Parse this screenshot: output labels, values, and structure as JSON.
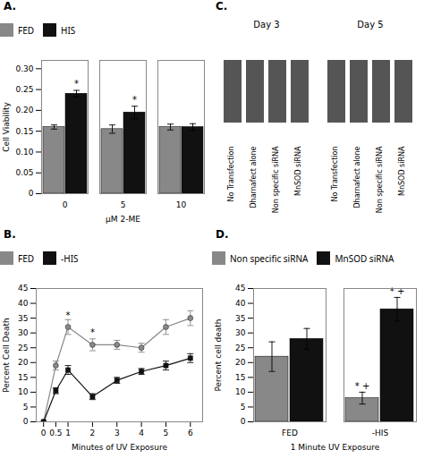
{
  "chart_data": [
    {
      "type": "bar",
      "title": "A.",
      "xlabel": "μM 2-ME",
      "ylabel": "Cell Viability",
      "categories": [
        0,
        5,
        10
      ],
      "series": [
        {
          "name": "FED",
          "color": "#888888",
          "values": [
            0.16,
            0.155,
            0.16
          ],
          "errors": [
            0.005,
            0.01,
            0.007
          ]
        },
        {
          "name": "HIS",
          "color": "#111111",
          "values": [
            0.24,
            0.195,
            0.16
          ],
          "errors": [
            0.008,
            0.015,
            0.008
          ]
        }
      ],
      "ylim": [
        0,
        0.32
      ],
      "yticks": [
        0,
        0.05,
        {
          "value": 0.1,
          "label": "0.10"
        },
        0.15,
        {
          "value": 0.2,
          "label": "0.20"
        },
        0.25,
        {
          "value": 0.3,
          "label": "0.30"
        }
      ],
      "legend": "top",
      "annotations": [
        {
          "text": "*",
          "category": 0,
          "series": "HIS",
          "y": 0.257
        },
        {
          "text": "*",
          "category": 5,
          "series": "HIS",
          "y": 0.219
        }
      ]
    },
    {
      "type": "blot",
      "title": "C.",
      "series": [
        {
          "name": "Day 3",
          "color": "#555555",
          "categories": [
            "No Transfection",
            "Dharnafect alone",
            "Non specific siRNA",
            "MnSOD siRNA"
          ]
        },
        {
          "name": "Day 5",
          "color": "#555555",
          "categories": [
            "No Transfection",
            "Dharnafect alone",
            "Non specific siRNA",
            "MnSOD siRNA"
          ]
        }
      ]
    },
    {
      "type": "line",
      "title": "B.",
      "xlabel": "Minutes of UV Exposure",
      "ylabel": "Percent Cell Death",
      "x": [
        0,
        0.5,
        1,
        2,
        3,
        4,
        5,
        6
      ],
      "series": [
        {
          "name": "FED",
          "color": "#888888",
          "marker": "circle",
          "values": [
            0,
            19,
            32,
            26,
            26,
            25,
            32,
            35
          ],
          "errors": [
            0,
            1.5,
            2.5,
            2.0,
            1.5,
            1.5,
            2.5,
            2.5
          ]
        },
        {
          "name": "-HIS",
          "color": "#111111",
          "marker": "square",
          "values": [
            0,
            10.5,
            17.5,
            8.5,
            14,
            17,
            19,
            21.5
          ],
          "errors": [
            0,
            1.0,
            1.5,
            1.0,
            1.0,
            1.0,
            1.5,
            1.5
          ]
        }
      ],
      "xlim": [
        -0.3,
        6.5
      ],
      "xticks": [
        0,
        0.5,
        1,
        2,
        3,
        4,
        5,
        6
      ],
      "ylim": [
        0,
        45
      ],
      "yticks": [
        0,
        5,
        10,
        15,
        20,
        25,
        30,
        35,
        40,
        45
      ],
      "legend": "top",
      "annotations": [
        {
          "text": "*",
          "x": 1,
          "y": 35
        },
        {
          "text": "*",
          "x": 2,
          "y": 29
        }
      ]
    },
    {
      "type": "bar",
      "title": "D.",
      "xlabel": "1 Minute UV Exposure",
      "ylabel": "Percent cell death",
      "categories": [
        "FED",
        "-HIS"
      ],
      "series": [
        {
          "name": "Non specific siRNA",
          "color": "#888888",
          "values": [
            22,
            8
          ],
          "errors": [
            5,
            2
          ]
        },
        {
          "name": "MnSOD siRNA",
          "color": "#111111",
          "values": [
            28,
            38
          ],
          "errors": [
            3.5,
            4
          ]
        }
      ],
      "ylim": [
        0,
        45
      ],
      "yticks": [
        0,
        5,
        10,
        15,
        20,
        25,
        30,
        35,
        40,
        45
      ],
      "legend": "top",
      "annotations": [
        {
          "text": "* +",
          "category": "-HIS",
          "series": "Non specific siRNA",
          "y": 11
        },
        {
          "text": "* +",
          "category": "-HIS",
          "series": "MnSOD siRNA",
          "y": 43
        }
      ]
    }
  ]
}
